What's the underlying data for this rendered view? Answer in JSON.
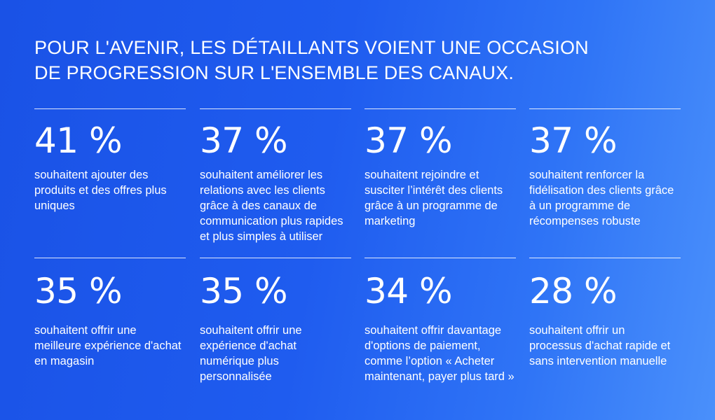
{
  "header": {
    "title_line1": "POUR L'AVENIR, LES DÉTAILLANTS VOIENT UNE OCCASION",
    "title_line2": "DE PROGRESSION SUR L'ENSEMBLE DES CANAUX."
  },
  "stats": [
    {
      "value": "41 %",
      "desc": "souhaitent ajouter des produits et des offres plus uniques"
    },
    {
      "value": "37 %",
      "desc": "souhaitent améliorer les relations avec les clients grâce à des canaux de communication plus rapides et plus simples à utiliser"
    },
    {
      "value": "37 %",
      "desc": "souhaitent rejoindre et susciter l’intérêt des clients grâce à un programme de marketing"
    },
    {
      "value": "37 %",
      "desc": "souhaitent renforcer la fidélisation des clients grâce à un programme de récompenses robuste"
    },
    {
      "value": "35 %",
      "desc": "souhaitent offrir une meilleure expérience d'achat en magasin"
    },
    {
      "value": "35 %",
      "desc": "souhaitent offrir une expérience d'achat numérique plus personnalisée"
    },
    {
      "value": "34 %",
      "desc": "souhaitent offrir davantage d'options de paiement, comme l’option « Acheter maintenant, payer plus tard »"
    },
    {
      "value": "28 %",
      "desc": "souhaitent offrir un processus d'achat rapide et sans intervention manuelle"
    }
  ]
}
